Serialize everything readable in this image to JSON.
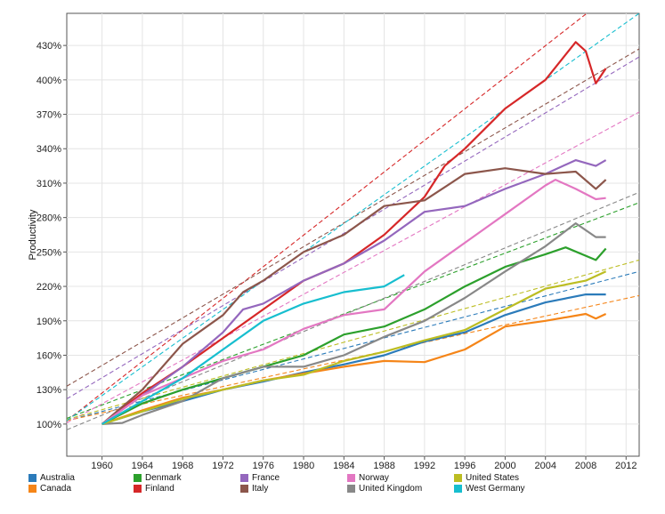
{
  "chart_data": {
    "type": "line",
    "title": "",
    "xlabel": "",
    "ylabel": "Productivity",
    "xlim": [
      1956.5,
      2013.3
    ],
    "ylim": [
      72,
      458
    ],
    "x_ticks": [
      1960,
      1964,
      1968,
      1972,
      1976,
      1980,
      1984,
      1988,
      1992,
      1996,
      2000,
      2004,
      2008,
      2012
    ],
    "y_ticks": [
      100,
      130,
      160,
      190,
      220,
      250,
      280,
      310,
      340,
      370,
      400,
      430
    ],
    "y_tick_labels": [
      "100%",
      "130%",
      "160%",
      "190%",
      "220%",
      "250%",
      "280%",
      "310%",
      "340%",
      "370%",
      "400%",
      "430%"
    ],
    "grid": true,
    "legend_position": "bottom",
    "series": [
      {
        "name": "Australia",
        "color": "#2b7bba",
        "years": [
          1960,
          1964,
          1968,
          1972,
          1976,
          1980,
          1984,
          1988,
          1992,
          1996,
          2000,
          2004,
          2008,
          2010
        ],
        "values": [
          100,
          111,
          120,
          130,
          137,
          145,
          152,
          160,
          172,
          180,
          195,
          206,
          213,
          213
        ],
        "trend": [
          [
            1956.5,
            103
          ],
          [
            2013.3,
            233
          ]
        ]
      },
      {
        "name": "Canada",
        "color": "#f58518",
        "years": [
          1960,
          1964,
          1968,
          1972,
          1976,
          1980,
          1984,
          1988,
          1992,
          1996,
          2000,
          2004,
          2008,
          2009,
          2010
        ],
        "values": [
          100,
          112,
          123,
          130,
          138,
          144,
          150,
          155,
          154,
          165,
          185,
          190,
          196,
          192,
          196
        ],
        "trend": [
          [
            1956.5,
            103
          ],
          [
            2013.3,
            212
          ]
        ]
      },
      {
        "name": "Denmark",
        "color": "#2ca02c",
        "years": [
          1960,
          1964,
          1968,
          1972,
          1976,
          1980,
          1984,
          1988,
          1992,
          1996,
          2000,
          2004,
          2006,
          2009,
          2010
        ],
        "values": [
          100,
          118,
          130,
          140,
          150,
          160,
          178,
          185,
          200,
          220,
          237,
          248,
          254,
          243,
          253
        ],
        "trend": [
          [
            1956.5,
            105
          ],
          [
            2013.3,
            293
          ]
        ]
      },
      {
        "name": "Finland",
        "color": "#d62728",
        "years": [
          1960,
          1964,
          1968,
          1972,
          1976,
          1980,
          1984,
          1988,
          1992,
          1994,
          1996,
          2000,
          2004,
          2007,
          2008,
          2009,
          2010
        ],
        "values": [
          100,
          127,
          150,
          175,
          200,
          225,
          240,
          265,
          298,
          325,
          340,
          375,
          400,
          433,
          425,
          397,
          410
        ],
        "trend": [
          [
            1956.5,
            103
          ],
          [
            2008.1,
            458
          ]
        ]
      },
      {
        "name": "France",
        "color": "#9467bd",
        "years": [
          1960,
          1964,
          1968,
          1972,
          1974,
          1976,
          1980,
          1984,
          1988,
          1992,
          1996,
          2000,
          2004,
          2007,
          2009,
          2010
        ],
        "values": [
          100,
          125,
          150,
          180,
          200,
          205,
          225,
          240,
          260,
          285,
          290,
          305,
          318,
          330,
          325,
          330
        ],
        "trend": [
          [
            1956.5,
            122
          ],
          [
            2013.3,
            420
          ]
        ]
      },
      {
        "name": "Italy",
        "color": "#8c564b",
        "years": [
          1960,
          1964,
          1968,
          1972,
          1974,
          1976,
          1980,
          1984,
          1988,
          1992,
          1996,
          2000,
          2004,
          2007,
          2009,
          2010
        ],
        "values": [
          100,
          130,
          170,
          195,
          215,
          225,
          250,
          265,
          290,
          295,
          318,
          323,
          318,
          320,
          305,
          313
        ],
        "trend": [
          [
            1956.5,
            133
          ],
          [
            2013.3,
            427
          ]
        ]
      },
      {
        "name": "Norway",
        "color": "#e377c2",
        "years": [
          1960,
          1964,
          1968,
          1972,
          1976,
          1980,
          1984,
          1988,
          1992,
          1996,
          2000,
          2004,
          2005,
          2007,
          2009,
          2010
        ],
        "values": [
          100,
          125,
          140,
          155,
          165,
          183,
          195,
          200,
          233,
          258,
          283,
          308,
          313,
          305,
          296,
          297
        ],
        "trend": [
          [
            1956.5,
            101
          ],
          [
            2013.3,
            372
          ]
        ]
      },
      {
        "name": "United Kingdom",
        "color": "#888888",
        "years": [
          1960,
          1962,
          1964,
          1968,
          1972,
          1976,
          1980,
          1984,
          1988,
          1992,
          1996,
          2000,
          2004,
          2007,
          2009,
          2010
        ],
        "values": [
          100,
          101,
          108,
          120,
          140,
          150,
          150,
          160,
          176,
          190,
          210,
          233,
          255,
          275,
          263,
          263
        ],
        "trend": [
          [
            1956.5,
            95
          ],
          [
            2013.3,
            302
          ]
        ]
      },
      {
        "name": "United States",
        "color": "#bcbd22",
        "years": [
          1960,
          1964,
          1968,
          1972,
          1976,
          1980,
          1984,
          1988,
          1992,
          1996,
          2000,
          2004,
          2008,
          2010
        ],
        "values": [
          100,
          111,
          122,
          130,
          138,
          143,
          155,
          163,
          173,
          182,
          200,
          218,
          225,
          233
        ],
        "trend": [
          [
            1956.5,
            104
          ],
          [
            2013.3,
            243
          ]
        ]
      },
      {
        "name": "West Germany",
        "color": "#17becf",
        "years": [
          1960,
          1964,
          1968,
          1972,
          1976,
          1980,
          1984,
          1988,
          1990
        ],
        "values": [
          100,
          120,
          140,
          165,
          190,
          205,
          215,
          220,
          230
        ],
        "trend": [
          [
            1956.5,
            103
          ],
          [
            2013.3,
            458
          ]
        ]
      }
    ]
  }
}
